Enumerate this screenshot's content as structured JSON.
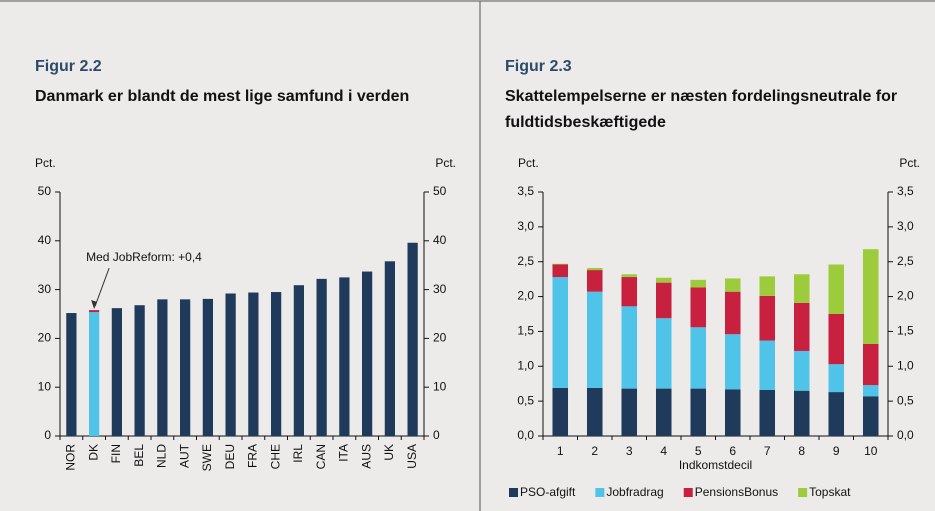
{
  "chart_data": [
    {
      "type": "bar",
      "figure_label": "Figur 2.2",
      "title": "Danmark er blandt de mest lige samfund i verden",
      "y_unit": "Pct.",
      "categories": [
        "NOR",
        "DK",
        "FIN",
        "BEL",
        "NLD",
        "AUT",
        "SWE",
        "DEU",
        "FRA",
        "CHE",
        "IRL",
        "CAN",
        "ITA",
        "AUS",
        "UK",
        "USA"
      ],
      "values": [
        25.2,
        25.4,
        26.2,
        26.8,
        28.0,
        28.0,
        28.1,
        29.2,
        29.4,
        29.5,
        30.9,
        32.2,
        32.5,
        33.7,
        35.8,
        39.6
      ],
      "bar_colors": [
        "#1f3a5a",
        "#4fc3e8",
        "#1f3a5a",
        "#1f3a5a",
        "#1f3a5a",
        "#1f3a5a",
        "#1f3a5a",
        "#1f3a5a",
        "#1f3a5a",
        "#1f3a5a",
        "#1f3a5a",
        "#1f3a5a",
        "#1f3a5a",
        "#1f3a5a",
        "#1f3a5a",
        "#1f3a5a"
      ],
      "reform": {
        "values": [
          null,
          0.4,
          null,
          null,
          null,
          null,
          null,
          null,
          null,
          null,
          null,
          null,
          null,
          null,
          null,
          null
        ],
        "color": "#c8203f",
        "annotation": "Med JobReform: +0,4"
      },
      "ylim": [
        0,
        50
      ],
      "yticks": [
        0,
        10,
        20,
        30,
        40,
        50
      ]
    },
    {
      "type": "stacked_bar",
      "figure_label": "Figur 2.3",
      "title": "Skattelempelserne er næsten fordelingsneutrale for fuldtidsbeskæftigede",
      "y_unit": "Pct.",
      "x_label": "Indkomstdecil",
      "categories": [
        "1",
        "2",
        "3",
        "4",
        "5",
        "6",
        "7",
        "8",
        "9",
        "10"
      ],
      "series": [
        {
          "name": "PSO-afgift",
          "color": "#1f3a5a",
          "values": [
            0.69,
            0.69,
            0.68,
            0.68,
            0.68,
            0.67,
            0.66,
            0.65,
            0.63,
            0.57
          ]
        },
        {
          "name": "Jobfradrag",
          "color": "#4fc3e8",
          "values": [
            1.59,
            1.38,
            1.18,
            1.01,
            0.88,
            0.79,
            0.71,
            0.57,
            0.4,
            0.16
          ]
        },
        {
          "name": "PensionsBonus",
          "color": "#c8203f",
          "values": [
            0.18,
            0.31,
            0.42,
            0.51,
            0.57,
            0.61,
            0.64,
            0.69,
            0.72,
            0.59
          ]
        },
        {
          "name": "Topskat",
          "color": "#9ccc3c",
          "values": [
            0.01,
            0.03,
            0.04,
            0.07,
            0.11,
            0.19,
            0.28,
            0.41,
            0.71,
            1.36
          ]
        }
      ],
      "ylim": [
        0,
        3.5
      ],
      "yticks": [
        {
          "value": 0,
          "label": "0,0"
        },
        {
          "value": 0.5,
          "label": "0,5"
        },
        {
          "value": 1,
          "label": "1,0"
        },
        {
          "value": 1.5,
          "label": "1,5"
        },
        {
          "value": 2,
          "label": "2,0"
        },
        {
          "value": 2.5,
          "label": "2,5"
        },
        {
          "value": 3,
          "label": "3,0"
        },
        {
          "value": 3.5,
          "label": "3,5"
        }
      ]
    }
  ]
}
